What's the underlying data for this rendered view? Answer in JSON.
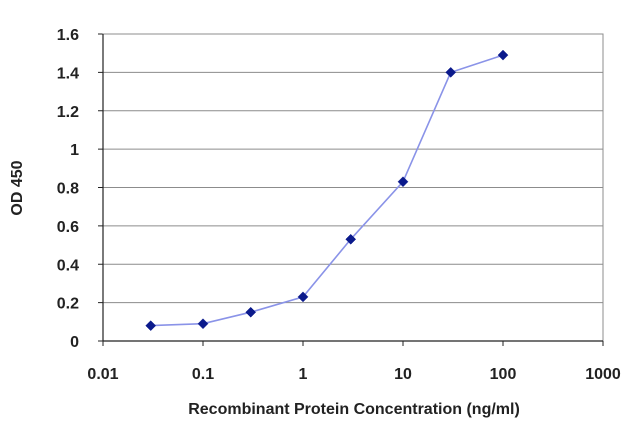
{
  "chart_data": {
    "type": "line",
    "xscale": "log",
    "xlabel": "Recombinant Protein Concentration (ng/ml)",
    "ylabel": "OD 450",
    "xlim": [
      0.01,
      1000
    ],
    "ylim": [
      0,
      1.6
    ],
    "xticks": [
      "0.01",
      "0.1",
      "1",
      "10",
      "100",
      "1000"
    ],
    "yticks": [
      "0",
      "0.2",
      "0.4",
      "0.6",
      "0.8",
      "1",
      "1.2",
      "1.4",
      "1.6"
    ],
    "grid": "horizontal",
    "series": [
      {
        "x": [
          0.03,
          0.1,
          0.3,
          1,
          3,
          10,
          30,
          100
        ],
        "y": [
          0.08,
          0.09,
          0.15,
          0.23,
          0.53,
          0.83,
          1.4,
          1.49
        ]
      }
    ],
    "colors": {
      "line": "#8a93e8",
      "marker": "#0b1a8c",
      "grid": "#8c8c8c",
      "axis": "#222222"
    }
  }
}
